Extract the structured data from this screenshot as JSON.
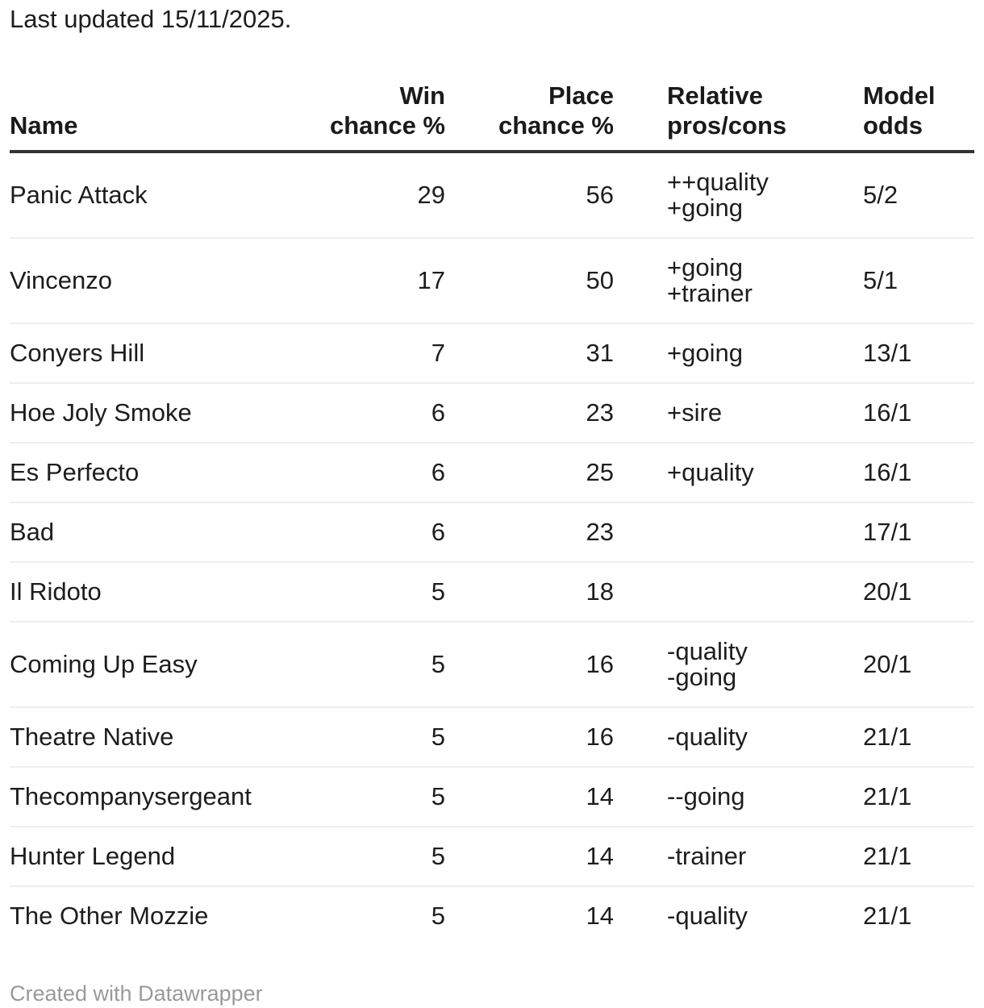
{
  "meta": {
    "last_updated": "Last updated 15/11/2025.",
    "footer": "Created with Datawrapper"
  },
  "colors": {
    "text": "#1d1d1d",
    "header_border": "#333333",
    "row_divider": "#eeeeee",
    "footer_text": "#9a9a9a",
    "background": "#ffffff"
  },
  "table": {
    "columns": [
      {
        "label": "Name",
        "align": "left"
      },
      {
        "label": "Win\nchance %",
        "align": "right"
      },
      {
        "label": "Place\nchance %",
        "align": "right"
      },
      {
        "label": "Relative\npros/cons",
        "align": "left"
      },
      {
        "label": "Model\nodds",
        "align": "left"
      }
    ],
    "rows": [
      {
        "name": "Panic Attack",
        "win": "29",
        "place": "56",
        "pros_cons": "++quality\n+going",
        "odds": "5/2"
      },
      {
        "name": "Vincenzo",
        "win": "17",
        "place": "50",
        "pros_cons": "+going\n+trainer",
        "odds": "5/1"
      },
      {
        "name": "Conyers Hill",
        "win": "7",
        "place": "31",
        "pros_cons": "+going",
        "odds": "13/1"
      },
      {
        "name": "Hoe Joly Smoke",
        "win": "6",
        "place": "23",
        "pros_cons": "+sire",
        "odds": "16/1"
      },
      {
        "name": "Es Perfecto",
        "win": "6",
        "place": "25",
        "pros_cons": "+quality",
        "odds": "16/1"
      },
      {
        "name": "Bad",
        "win": "6",
        "place": "23",
        "pros_cons": "",
        "odds": "17/1"
      },
      {
        "name": "Il Ridoto",
        "win": "5",
        "place": "18",
        "pros_cons": "",
        "odds": "20/1"
      },
      {
        "name": "Coming Up Easy",
        "win": "5",
        "place": "16",
        "pros_cons": "-quality\n-going",
        "odds": "20/1"
      },
      {
        "name": "Theatre Native",
        "win": "5",
        "place": "16",
        "pros_cons": "-quality",
        "odds": "21/1"
      },
      {
        "name": "Thecompanysergeant",
        "win": "5",
        "place": "14",
        "pros_cons": "--going",
        "odds": "21/1"
      },
      {
        "name": "Hunter Legend",
        "win": "5",
        "place": "14",
        "pros_cons": "-trainer",
        "odds": "21/1"
      },
      {
        "name": "The Other Mozzie",
        "win": "5",
        "place": "14",
        "pros_cons": "-quality",
        "odds": "21/1"
      }
    ]
  },
  "chart_data": {
    "type": "table",
    "title": "",
    "subtitle": "Last updated 15/11/2025.",
    "columns": [
      "Name",
      "Win chance %",
      "Place chance %",
      "Relative pros/cons",
      "Model odds"
    ],
    "rows": [
      [
        "Panic Attack",
        29,
        56,
        "++quality +going",
        "5/2"
      ],
      [
        "Vincenzo",
        17,
        50,
        "+going +trainer",
        "5/1"
      ],
      [
        "Conyers Hill",
        7,
        31,
        "+going",
        "13/1"
      ],
      [
        "Hoe Joly Smoke",
        6,
        23,
        "+sire",
        "16/1"
      ],
      [
        "Es Perfecto",
        6,
        25,
        "+quality",
        "16/1"
      ],
      [
        "Bad",
        6,
        23,
        "",
        "17/1"
      ],
      [
        "Il Ridoto",
        5,
        18,
        "",
        "20/1"
      ],
      [
        "Coming Up Easy",
        5,
        16,
        "-quality -going",
        "20/1"
      ],
      [
        "Theatre Native",
        5,
        16,
        "-quality",
        "21/1"
      ],
      [
        "Thecompanysergeant",
        5,
        14,
        "--going",
        "21/1"
      ],
      [
        "Hunter Legend",
        5,
        14,
        "-trainer",
        "21/1"
      ],
      [
        "The Other Mozzie",
        5,
        14,
        "-quality",
        "21/1"
      ]
    ],
    "credit": "Created with Datawrapper"
  }
}
